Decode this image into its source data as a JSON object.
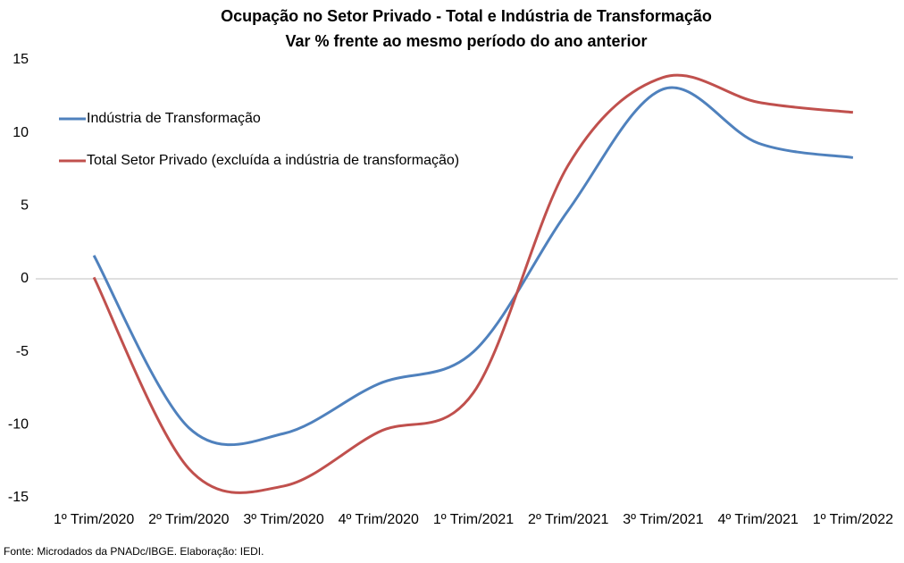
{
  "chart_data": {
    "type": "line",
    "title": "Ocupação no Setor Privado - Total e Indústria de Transformação",
    "subtitle": "Var % frente ao mesmo período do ano anterior",
    "source": "Fonte: Microdados da PNADc/IBGE. Elaboração: IEDI.",
    "categories": [
      "1º Trim/2020",
      "2º Trim/2020",
      "3º Trim/2020",
      "4º Trim/2020",
      "1º Trim/2021",
      "2º Trim/2021",
      "3º Trim/2021",
      "4º Trim/2021",
      "1º Trim/2022"
    ],
    "series": [
      {
        "name": "Indústria de Transformação",
        "color": "#4f81bd",
        "values": [
          1.6,
          -10.2,
          -10.6,
          -7.2,
          -5.0,
          4.7,
          13.0,
          9.3,
          8.3
        ]
      },
      {
        "name": "Total Setor Privado (excluída a indústria de transformação)",
        "color": "#c0504d",
        "values": [
          0.1,
          -13.0,
          -14.2,
          -10.5,
          -7.8,
          7.8,
          13.8,
          12.1,
          11.4
        ]
      }
    ],
    "ylim": [
      -15,
      15
    ],
    "yticks": [
      15,
      10,
      5,
      0,
      -5,
      -10,
      -15
    ],
    "grid": false,
    "legend": "top-left"
  }
}
